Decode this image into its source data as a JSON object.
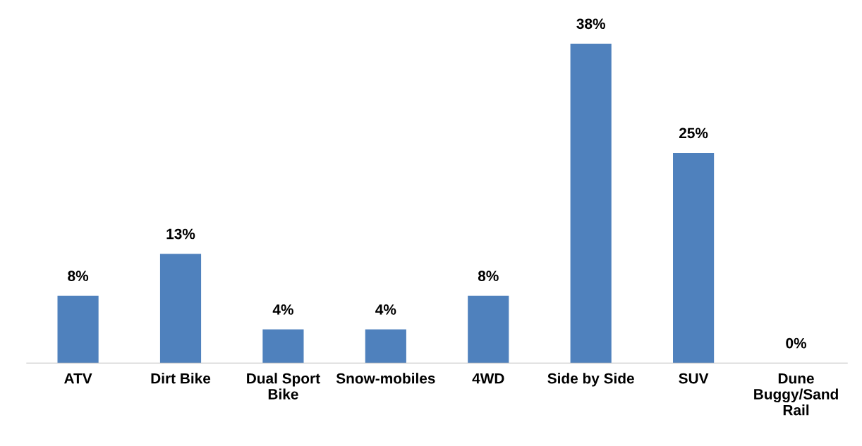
{
  "chart_data": {
    "type": "bar",
    "categories": [
      "ATV",
      "Dirt Bike",
      "Dual Sport Bike",
      "Snow-mobiles",
      "4WD",
      "Side by Side",
      "SUV",
      "Dune Buggy/Sand Rail"
    ],
    "values": [
      8,
      13,
      4,
      4,
      8,
      38,
      25,
      0
    ],
    "value_labels": [
      "8%",
      "13%",
      "4%",
      "4%",
      "8%",
      "38%",
      "25%",
      "0%"
    ],
    "color": "#4f81bd",
    "tick_labels": "x",
    "grid": false,
    "legend": false
  }
}
